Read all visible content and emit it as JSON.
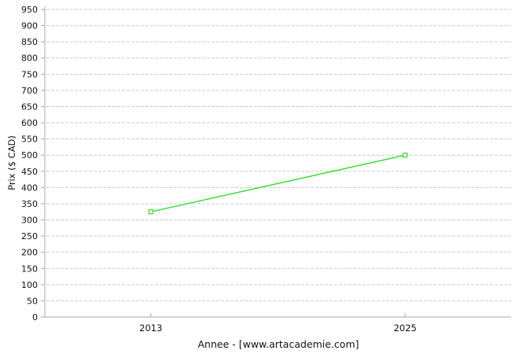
{
  "chart_data": {
    "type": "line",
    "title": "",
    "ylabel": "Prix ($ CAD)",
    "xlabel": "Annee - [www.artacademie.com]",
    "x": [
      2013,
      2025
    ],
    "xtick_labels": [
      "2013",
      "2025"
    ],
    "series": [
      {
        "name": "Prix",
        "values": [
          325,
          500
        ],
        "color": "#33dd33",
        "marker": "open-square"
      }
    ],
    "ylim": [
      0,
      950
    ],
    "yticks": [
      0,
      50,
      100,
      150,
      200,
      250,
      300,
      350,
      400,
      450,
      500,
      550,
      600,
      650,
      700,
      750,
      800,
      850,
      900,
      950
    ],
    "xlim": [
      2008,
      2030
    ],
    "xticks": [
      2013,
      2025
    ],
    "grid": "horizontal-dashed",
    "legend": "none",
    "colors": {
      "grid": "#c9c9c9",
      "axis": "#aaaaaa",
      "text": "#111111",
      "background": "#ffffff"
    }
  }
}
